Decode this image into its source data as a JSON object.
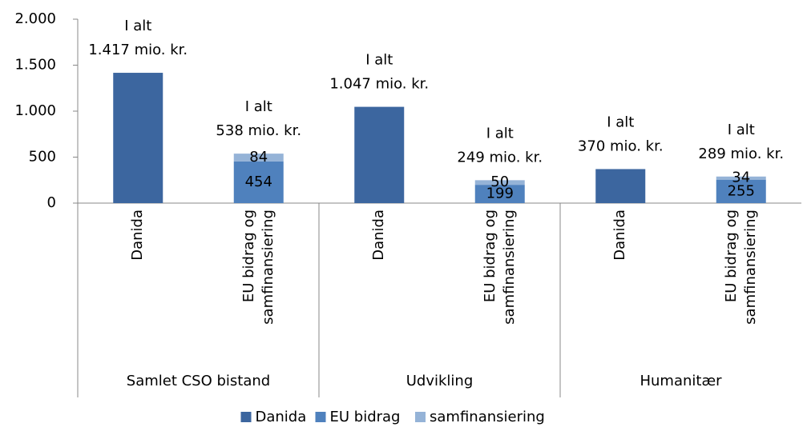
{
  "chart_data": {
    "type": "stacked-bar",
    "categories": [
      "Danida",
      "EU bidrag og samfinansiering",
      "Danida",
      "EU bidrag og samfinansiering",
      "Danida",
      "EU bidrag og samfinansiering"
    ],
    "groups": [
      "Samlet CSO bistand",
      "Udvikling",
      "Humanitær"
    ],
    "series": [
      {
        "name": "Danida",
        "color": "#3c669f",
        "data_labels": false,
        "values": [
          1417,
          null,
          1047,
          null,
          370,
          null
        ]
      },
      {
        "name": "EU bidrag",
        "color": "#4f81bd",
        "data_labels": true,
        "values": [
          null,
          454,
          null,
          199,
          null,
          255
        ]
      },
      {
        "name": "samfinansiering",
        "color": "#95b3d7",
        "data_labels": true,
        "values": [
          null,
          84,
          null,
          50,
          null,
          34
        ]
      }
    ],
    "annotations": [
      [
        "I alt",
        "1.417 mio. kr."
      ],
      [
        "I alt",
        "538 mio. kr."
      ],
      [
        "I alt",
        "1.047 mio. kr."
      ],
      [
        "I alt",
        "249 mio. kr."
      ],
      [
        "I alt",
        "370 mio. kr."
      ],
      [
        "I alt",
        "289 mio. kr."
      ]
    ],
    "ylim": [
      0,
      2000
    ],
    "yticks": [
      0,
      500,
      {
        "value": 1000,
        "label": "1.000"
      },
      {
        "value": 1500,
        "label": "1.500"
      },
      {
        "value": 2000,
        "label": "2.000"
      }
    ],
    "legend": "bottom"
  }
}
